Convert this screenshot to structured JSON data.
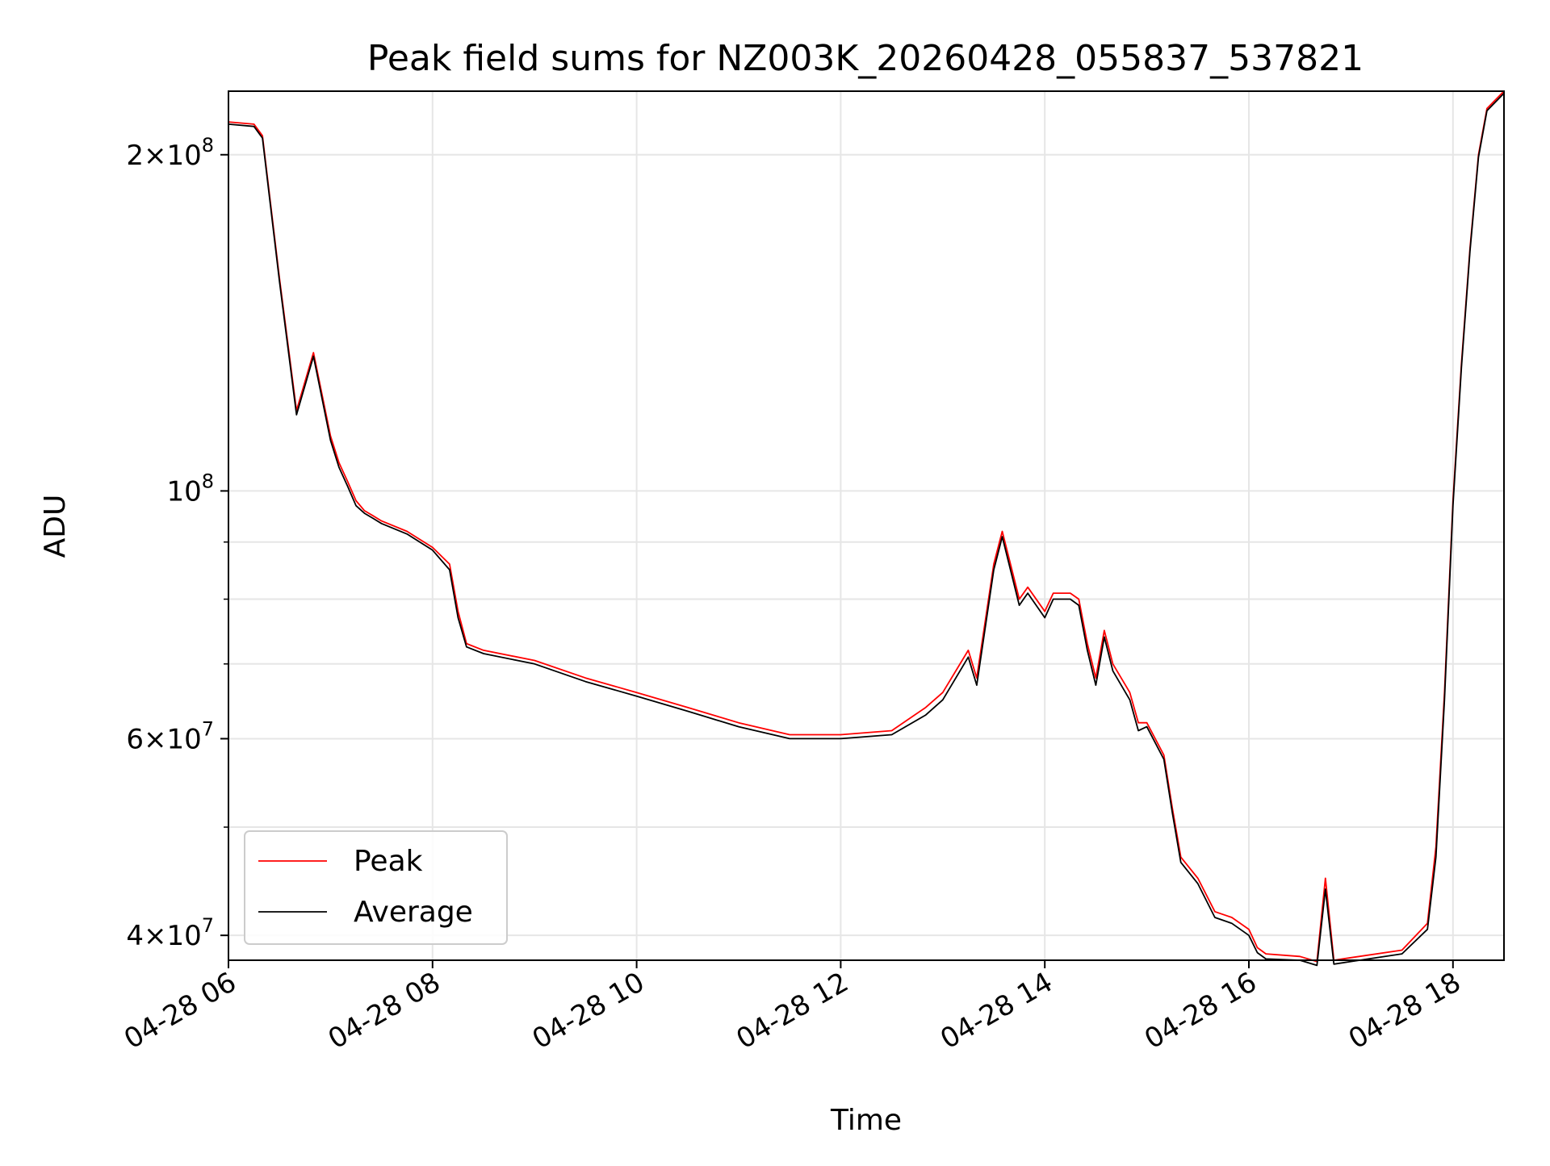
{
  "chart_data": {
    "type": "line",
    "title": "Peak field sums for NZ003K_20260428_055837_537821",
    "xlabel": "Time",
    "ylabel": "ADU",
    "y_scale": "log",
    "ylim": [
      38000000,
      228000000
    ],
    "xlim": [
      "2026-04-28 06:00",
      "2026-04-28 18:30"
    ],
    "x_ticks": [
      {
        "value": "2026-04-28 06:00",
        "label": "04-28 06"
      },
      {
        "value": "2026-04-28 08:00",
        "label": "04-28 08"
      },
      {
        "value": "2026-04-28 10:00",
        "label": "04-28 10"
      },
      {
        "value": "2026-04-28 12:00",
        "label": "04-28 12"
      },
      {
        "value": "2026-04-28 14:00",
        "label": "04-28 14"
      },
      {
        "value": "2026-04-28 16:00",
        "label": "04-28 16"
      },
      {
        "value": "2026-04-28 18:00",
        "label": "04-28 18"
      }
    ],
    "y_ticks": [
      {
        "value": 40000000,
        "base": "4",
        "exp": "7"
      },
      {
        "value": 60000000,
        "base": "6",
        "exp": "7"
      },
      {
        "value": 100000000,
        "base": "",
        "exp": "8"
      },
      {
        "value": 200000000,
        "base": "2",
        "exp": "8"
      }
    ],
    "y_minor_grid": [
      50000000,
      70000000,
      80000000,
      90000000
    ],
    "grid": true,
    "legend": {
      "position": "lower-left",
      "entries": [
        "Peak",
        "Average"
      ]
    },
    "series": [
      {
        "name": "Peak",
        "color": "#ff0000",
        "x": [
          "2026-04-28 06:00",
          "2026-04-28 06:15",
          "2026-04-28 06:20",
          "2026-04-28 06:30",
          "2026-04-28 06:40",
          "2026-04-28 06:50",
          "2026-04-28 07:00",
          "2026-04-28 07:05",
          "2026-04-28 07:10",
          "2026-04-28 07:15",
          "2026-04-28 07:20",
          "2026-04-28 07:25",
          "2026-04-28 07:30",
          "2026-04-28 07:45",
          "2026-04-28 08:00",
          "2026-04-28 08:10",
          "2026-04-28 08:15",
          "2026-04-28 08:20",
          "2026-04-28 08:30",
          "2026-04-28 09:00",
          "2026-04-28 09:30",
          "2026-04-28 10:00",
          "2026-04-28 10:30",
          "2026-04-28 11:00",
          "2026-04-28 11:30",
          "2026-04-28 12:00",
          "2026-04-28 12:30",
          "2026-04-28 12:50",
          "2026-04-28 13:00",
          "2026-04-28 13:15",
          "2026-04-28 13:20",
          "2026-04-28 13:30",
          "2026-04-28 13:35",
          "2026-04-28 13:45",
          "2026-04-28 13:50",
          "2026-04-28 14:00",
          "2026-04-28 14:05",
          "2026-04-28 14:15",
          "2026-04-28 14:20",
          "2026-04-28 14:25",
          "2026-04-28 14:30",
          "2026-04-28 14:35",
          "2026-04-28 14:40",
          "2026-04-28 14:50",
          "2026-04-28 14:55",
          "2026-04-28 15:00",
          "2026-04-28 15:10",
          "2026-04-28 15:15",
          "2026-04-28 15:20",
          "2026-04-28 15:30",
          "2026-04-28 15:40",
          "2026-04-28 15:50",
          "2026-04-28 16:00",
          "2026-04-28 16:05",
          "2026-04-28 16:10",
          "2026-04-28 16:30",
          "2026-04-28 16:40",
          "2026-04-28 16:45",
          "2026-04-28 16:50",
          "2026-04-28 17:00",
          "2026-04-28 17:30",
          "2026-04-28 17:45",
          "2026-04-28 17:50",
          "2026-04-28 17:55",
          "2026-04-28 18:00",
          "2026-04-28 18:05",
          "2026-04-28 18:10",
          "2026-04-28 18:15",
          "2026-04-28 18:20",
          "2026-04-28 18:30"
        ],
        "y": [
          214000000,
          213000000,
          208000000,
          155000000,
          118000000,
          133000000,
          112000000,
          106000000,
          102000000,
          98000000,
          96000000,
          95000000,
          94000000,
          92000000,
          89000000,
          86000000,
          78000000,
          73000000,
          72000000,
          70500000,
          68000000,
          66000000,
          64000000,
          62000000,
          60500000,
          60500000,
          61000000,
          64000000,
          66000000,
          72000000,
          68000000,
          86000000,
          92000000,
          80000000,
          82000000,
          78000000,
          81000000,
          81000000,
          80000000,
          73000000,
          68000000,
          75000000,
          70000000,
          66000000,
          62000000,
          62000000,
          58000000,
          52000000,
          47000000,
          45000000,
          42000000,
          41500000,
          40500000,
          39000000,
          38500000,
          38300000,
          37900000,
          45000000,
          38000000,
          38200000,
          38800000,
          41000000,
          48000000,
          66000000,
          98000000,
          130000000,
          165000000,
          200000000,
          220000000,
          228000000
        ]
      },
      {
        "name": "Average",
        "color": "#000000",
        "x": [
          "2026-04-28 06:00",
          "2026-04-28 06:15",
          "2026-04-28 06:20",
          "2026-04-28 06:30",
          "2026-04-28 06:40",
          "2026-04-28 06:50",
          "2026-04-28 07:00",
          "2026-04-28 07:05",
          "2026-04-28 07:10",
          "2026-04-28 07:15",
          "2026-04-28 07:20",
          "2026-04-28 07:25",
          "2026-04-28 07:30",
          "2026-04-28 07:45",
          "2026-04-28 08:00",
          "2026-04-28 08:10",
          "2026-04-28 08:15",
          "2026-04-28 08:20",
          "2026-04-28 08:30",
          "2026-04-28 09:00",
          "2026-04-28 09:30",
          "2026-04-28 10:00",
          "2026-04-28 10:30",
          "2026-04-28 11:00",
          "2026-04-28 11:30",
          "2026-04-28 12:00",
          "2026-04-28 12:30",
          "2026-04-28 12:50",
          "2026-04-28 13:00",
          "2026-04-28 13:15",
          "2026-04-28 13:20",
          "2026-04-28 13:30",
          "2026-04-28 13:35",
          "2026-04-28 13:45",
          "2026-04-28 13:50",
          "2026-04-28 14:00",
          "2026-04-28 14:05",
          "2026-04-28 14:15",
          "2026-04-28 14:20",
          "2026-04-28 14:25",
          "2026-04-28 14:30",
          "2026-04-28 14:35",
          "2026-04-28 14:40",
          "2026-04-28 14:50",
          "2026-04-28 14:55",
          "2026-04-28 15:00",
          "2026-04-28 15:10",
          "2026-04-28 15:15",
          "2026-04-28 15:20",
          "2026-04-28 15:30",
          "2026-04-28 15:40",
          "2026-04-28 15:50",
          "2026-04-28 16:00",
          "2026-04-28 16:05",
          "2026-04-28 16:10",
          "2026-04-28 16:30",
          "2026-04-28 16:40",
          "2026-04-28 16:45",
          "2026-04-28 16:50",
          "2026-04-28 17:00",
          "2026-04-28 17:30",
          "2026-04-28 17:45",
          "2026-04-28 17:50",
          "2026-04-28 17:55",
          "2026-04-28 18:00",
          "2026-04-28 18:05",
          "2026-04-28 18:10",
          "2026-04-28 18:15",
          "2026-04-28 18:20",
          "2026-04-28 18:30"
        ],
        "y": [
          213000000,
          212000000,
          207000000,
          154000000,
          117000000,
          132000000,
          111000000,
          105000000,
          101000000,
          97000000,
          95500000,
          94500000,
          93500000,
          91500000,
          88500000,
          85000000,
          77000000,
          72500000,
          71500000,
          70000000,
          67500000,
          65500000,
          63500000,
          61500000,
          60000000,
          60000000,
          60500000,
          63000000,
          65000000,
          71000000,
          67000000,
          85000000,
          91000000,
          79000000,
          81000000,
          77000000,
          80000000,
          80000000,
          79000000,
          72000000,
          67000000,
          74000000,
          69000000,
          65000000,
          61000000,
          61500000,
          57500000,
          51500000,
          46500000,
          44500000,
          41500000,
          41000000,
          40000000,
          38600000,
          38100000,
          38000000,
          37600000,
          44000000,
          37700000,
          37900000,
          38500000,
          40500000,
          47000000,
          65000000,
          97000000,
          129000000,
          164000000,
          199000000,
          219000000,
          227000000
        ]
      }
    ]
  }
}
